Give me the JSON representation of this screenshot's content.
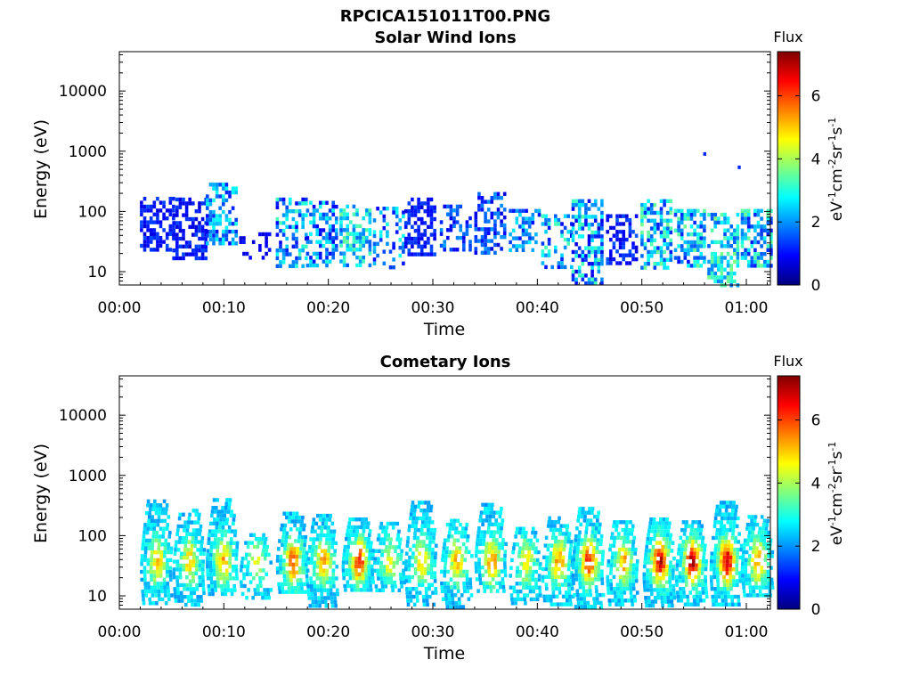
{
  "figure_title": "RPCICA151011T00.PNG",
  "chart_data": [
    {
      "type": "heatmap",
      "title": "Solar Wind Ions",
      "xlabel": "Time",
      "ylabel": "Energy (eV)",
      "x_ticks": [
        "00:00",
        "00:10",
        "00:20",
        "00:30",
        "00:40",
        "00:50",
        "01:00"
      ],
      "x_tick_minutes": [
        0,
        10,
        20,
        30,
        40,
        50,
        60
      ],
      "xlim_minutes": [
        0,
        62.3
      ],
      "y_scale": "log",
      "y_ticks": [
        "10",
        "100",
        "1000",
        "10000"
      ],
      "ylim": [
        6,
        45000
      ],
      "colorbar": {
        "title": "Flux",
        "label": "eV-1cm-2sr-1s-1",
        "ticks": [
          "0",
          "2",
          "4",
          "6"
        ],
        "range": [
          0,
          7.4
        ],
        "colormap": "jet"
      },
      "bursts": [
        {
          "t": 3.5,
          "e_lo": 22,
          "e_hi": 175,
          "flux": [
            0.6,
            1.5
          ],
          "density": 0.6
        },
        {
          "t": 6.6,
          "e_lo": 17,
          "e_hi": 170,
          "flux": [
            0.6,
            1.5
          ],
          "density": 0.55
        },
        {
          "t": 9.8,
          "e_lo": 28,
          "e_hi": 300,
          "flux": [
            0.8,
            3.0
          ],
          "density": 0.55
        },
        {
          "t": 13.0,
          "e_lo": 17,
          "e_hi": 45,
          "flux": [
            0.6,
            1.2
          ],
          "density": 0.25
        },
        {
          "t": 16.5,
          "e_lo": 12,
          "e_hi": 170,
          "flux": [
            0.8,
            3.4
          ],
          "density": 0.5
        },
        {
          "t": 19.4,
          "e_lo": 12,
          "e_hi": 150,
          "flux": [
            0.8,
            3.0
          ],
          "density": 0.5
        },
        {
          "t": 22.6,
          "e_lo": 12,
          "e_hi": 130,
          "flux": [
            1.5,
            3.6
          ],
          "density": 0.6
        },
        {
          "t": 25.8,
          "e_lo": 12,
          "e_hi": 120,
          "flux": [
            0.8,
            3.0
          ],
          "density": 0.3
        },
        {
          "t": 28.8,
          "e_lo": 20,
          "e_hi": 170,
          "flux": [
            0.6,
            1.5
          ],
          "density": 0.55
        },
        {
          "t": 32.2,
          "e_lo": 22,
          "e_hi": 130,
          "flux": [
            0.8,
            2.2
          ],
          "density": 0.4
        },
        {
          "t": 35.5,
          "e_lo": 20,
          "e_hi": 210,
          "flux": [
            0.6,
            2.0
          ],
          "density": 0.55
        },
        {
          "t": 38.8,
          "e_lo": 22,
          "e_hi": 110,
          "flux": [
            0.8,
            2.8
          ],
          "density": 0.45
        },
        {
          "t": 41.9,
          "e_lo": 12,
          "e_hi": 90,
          "flux": [
            0.8,
            3.4
          ],
          "density": 0.4
        },
        {
          "t": 44.8,
          "e_lo": 6,
          "e_hi": 160,
          "flux": [
            0.6,
            3.4
          ],
          "density": 0.55
        },
        {
          "t": 48.1,
          "e_lo": 14,
          "e_hi": 90,
          "flux": [
            0.6,
            1.6
          ],
          "density": 0.5
        },
        {
          "t": 51.4,
          "e_lo": 12,
          "e_hi": 160,
          "flux": [
            1.0,
            3.6
          ],
          "density": 0.6
        },
        {
          "t": 54.6,
          "e_lo": 12,
          "e_hi": 110,
          "flux": [
            1.0,
            3.6
          ],
          "density": 0.55
        },
        {
          "t": 57.8,
          "e_lo": 6,
          "e_hi": 95,
          "flux": [
            1.5,
            3.8
          ],
          "density": 0.6
        },
        {
          "t": 61.0,
          "e_lo": 12,
          "e_hi": 110,
          "flux": [
            1.0,
            3.6
          ],
          "density": 0.6
        }
      ],
      "isolated_points": [
        {
          "t": 56.0,
          "e": 900,
          "flux": 1.2
        },
        {
          "t": 59.3,
          "e": 540,
          "flux": 1.2
        }
      ]
    },
    {
      "type": "heatmap",
      "title": "Cometary Ions",
      "xlabel": "Time",
      "ylabel": "Energy (eV)",
      "x_ticks": [
        "00:00",
        "00:10",
        "00:20",
        "00:30",
        "00:40",
        "00:50",
        "01:00"
      ],
      "x_tick_minutes": [
        0,
        10,
        20,
        30,
        40,
        50,
        60
      ],
      "xlim_minutes": [
        0,
        62.3
      ],
      "y_scale": "log",
      "y_ticks": [
        "10",
        "100",
        "1000",
        "10000"
      ],
      "ylim": [
        6,
        45000
      ],
      "colorbar": {
        "title": "Flux",
        "label": "eV-1cm-2sr-1s-1",
        "ticks": [
          "0",
          "2",
          "4",
          "6"
        ],
        "range": [
          0,
          7.4
        ],
        "colormap": "jet"
      },
      "bursts": [
        {
          "t": 3.5,
          "e_lo": 7,
          "e_hi": 400,
          "peak": 5.0,
          "density": 0.75
        },
        {
          "t": 6.6,
          "e_lo": 7,
          "e_hi": 280,
          "peak": 5.0,
          "density": 0.7
        },
        {
          "t": 9.8,
          "e_lo": 10,
          "e_hi": 420,
          "peak": 5.2,
          "density": 0.7
        },
        {
          "t": 13.0,
          "e_lo": 10,
          "e_hi": 110,
          "peak": 4.3,
          "density": 0.5
        },
        {
          "t": 16.5,
          "e_lo": 12,
          "e_hi": 250,
          "peak": 6.0,
          "density": 0.75
        },
        {
          "t": 19.4,
          "e_lo": 7,
          "e_hi": 230,
          "peak": 5.3,
          "density": 0.7
        },
        {
          "t": 22.8,
          "e_lo": 12,
          "e_hi": 200,
          "peak": 6.3,
          "density": 0.8
        },
        {
          "t": 25.8,
          "e_lo": 12,
          "e_hi": 170,
          "peak": 4.6,
          "density": 0.6
        },
        {
          "t": 28.8,
          "e_lo": 7,
          "e_hi": 380,
          "peak": 5.0,
          "density": 0.7
        },
        {
          "t": 32.2,
          "e_lo": 7,
          "e_hi": 190,
          "peak": 5.2,
          "density": 0.65
        },
        {
          "t": 35.5,
          "e_lo": 12,
          "e_hi": 350,
          "peak": 5.5,
          "density": 0.7
        },
        {
          "t": 38.8,
          "e_lo": 7,
          "e_hi": 140,
          "peak": 4.8,
          "density": 0.6
        },
        {
          "t": 41.9,
          "e_lo": 7,
          "e_hi": 210,
          "peak": 5.5,
          "density": 0.7
        },
        {
          "t": 44.8,
          "e_lo": 7,
          "e_hi": 300,
          "peak": 6.3,
          "density": 0.75
        },
        {
          "t": 48.1,
          "e_lo": 7,
          "e_hi": 180,
          "peak": 5.3,
          "density": 0.7
        },
        {
          "t": 51.6,
          "e_lo": 7,
          "e_hi": 200,
          "peak": 7.0,
          "density": 0.8
        },
        {
          "t": 54.7,
          "e_lo": 7,
          "e_hi": 180,
          "peak": 7.0,
          "density": 0.8
        },
        {
          "t": 58.0,
          "e_lo": 7,
          "e_hi": 380,
          "peak": 7.0,
          "density": 0.8
        },
        {
          "t": 61.0,
          "e_lo": 10,
          "e_hi": 220,
          "peak": 5.5,
          "density": 0.75
        }
      ]
    }
  ]
}
